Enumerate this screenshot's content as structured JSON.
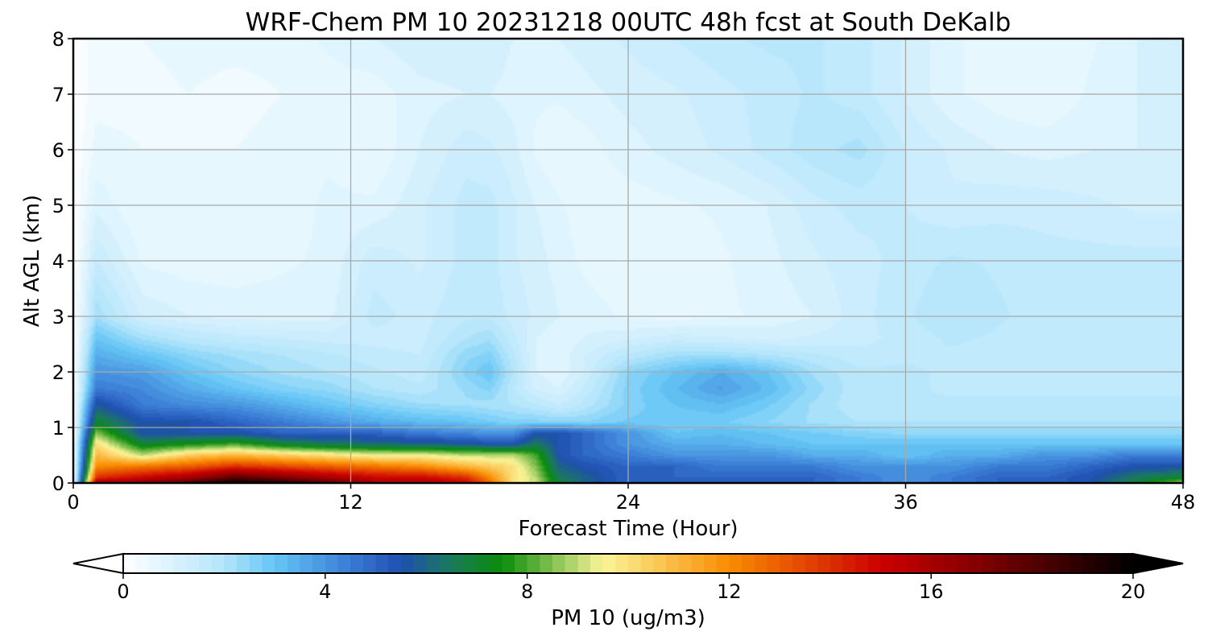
{
  "chart_data": {
    "type": "heatmap",
    "subtype": "time-height contour",
    "title": "WRF-Chem PM 10  20231218 00UTC 48h fcst at South DeKalb",
    "xlabel": "Forecast Time (Hour)",
    "ylabel": "Alt AGL (km)",
    "xlim": [
      0,
      48
    ],
    "ylim": [
      0,
      8
    ],
    "xticks": [
      "0",
      "12",
      "24",
      "36",
      "48"
    ],
    "yticks": [
      "0",
      "1",
      "2",
      "3",
      "4",
      "5",
      "6",
      "7",
      "8"
    ],
    "grid": true,
    "colorbar": {
      "label": "PM 10  (ug/m3)",
      "ticks": [
        "0",
        "4",
        "8",
        "12",
        "16",
        "20"
      ],
      "range": [
        0,
        20
      ],
      "extend": "both",
      "stops": [
        {
          "v": 0,
          "c": "#ffffff"
        },
        {
          "v": 2,
          "c": "#b3e5fc"
        },
        {
          "v": 3,
          "c": "#64c5f5"
        },
        {
          "v": 4.5,
          "c": "#3a7bd5"
        },
        {
          "v": 5.5,
          "c": "#1f4fb0"
        },
        {
          "v": 6.5,
          "c": "#1a7a5a"
        },
        {
          "v": 7.5,
          "c": "#0a8c0a"
        },
        {
          "v": 9.5,
          "c": "#fbf599"
        },
        {
          "v": 12,
          "c": "#fa8c00"
        },
        {
          "v": 15,
          "c": "#cc0000"
        },
        {
          "v": 17,
          "c": "#800000"
        },
        {
          "v": 20,
          "c": "#000000"
        }
      ]
    },
    "times_h": [
      0,
      1,
      3,
      5,
      7,
      9,
      11,
      13,
      15,
      17,
      18,
      19,
      20,
      21,
      22,
      24,
      26,
      28,
      30,
      32,
      34,
      36,
      38,
      40,
      42,
      44,
      46,
      48
    ],
    "altitudes_km": [
      0,
      0.1,
      0.3,
      0.5,
      0.7,
      0.9,
      1.1,
      1.4,
      1.7,
      2,
      2.3,
      2.6,
      3,
      4,
      5,
      6,
      7,
      8
    ],
    "values_ugm3": [
      [
        0,
        16,
        17,
        18.5,
        20,
        19.5,
        18,
        16,
        16,
        15,
        13,
        10,
        9,
        7,
        6,
        5,
        5,
        5,
        5,
        5,
        4.5,
        4,
        4.5,
        5,
        5,
        5.5,
        7,
        9
      ],
      [
        0,
        14,
        15,
        16,
        18,
        17,
        16,
        15,
        15,
        14,
        12,
        10,
        9,
        6.5,
        6,
        5,
        5,
        5,
        5,
        5,
        4.5,
        4,
        4.5,
        5,
        5,
        5.5,
        6.5,
        7
      ],
      [
        0,
        12,
        12.5,
        13,
        14,
        13.5,
        13,
        12.5,
        12,
        11,
        10.5,
        10,
        8.5,
        6,
        5.5,
        5,
        5,
        4.5,
        4.5,
        4.5,
        4,
        4,
        4,
        4.5,
        4.5,
        5,
        5.5,
        5.5
      ],
      [
        0,
        11,
        9,
        10.5,
        11,
        10.5,
        10,
        9.5,
        9.5,
        9,
        9,
        9,
        8,
        5.5,
        5,
        4.5,
        4,
        4,
        4,
        3.5,
        3.5,
        3,
        3.5,
        3.5,
        4,
        4,
        4.5,
        4.5
      ],
      [
        0,
        10,
        7,
        7.5,
        8,
        7,
        6.5,
        6.2,
        6,
        5.8,
        5.5,
        5.5,
        6.5,
        5.5,
        5,
        4,
        3.5,
        3.5,
        3.2,
        3,
        3,
        3,
        3,
        3,
        3,
        3,
        3,
        3
      ],
      [
        0,
        8.5,
        5.5,
        5.5,
        5.5,
        5,
        5,
        5,
        4.5,
        4.2,
        4,
        4,
        5.5,
        5.5,
        5,
        4,
        3,
        3.2,
        3,
        2.8,
        2.6,
        2.4,
        2.4,
        2.4,
        2.4,
        2.4,
        2.4,
        2.4
      ],
      [
        0,
        7,
        5.5,
        5.5,
        5,
        4.5,
        4,
        3.5,
        3.2,
        3,
        2.8,
        2.6,
        2.6,
        2.5,
        2.5,
        2.8,
        2.8,
        2.8,
        2.5,
        2.2,
        2,
        2,
        2,
        2,
        2,
        2,
        2,
        2
      ],
      [
        0,
        5.8,
        4.5,
        4.2,
        4,
        3.5,
        3,
        2.6,
        2.3,
        2.2,
        2.1,
        2,
        1.8,
        1.5,
        1.8,
        2.6,
        3,
        3.2,
        2.8,
        2.2,
        1.8,
        1.8,
        1.8,
        1.8,
        1.8,
        1.8,
        1.8,
        1.8
      ],
      [
        0,
        4.5,
        4.2,
        3.5,
        3,
        2.6,
        2.4,
        2,
        1.8,
        2.3,
        2.6,
        1.8,
        1.2,
        1,
        1.5,
        2.6,
        3.2,
        3.8,
        3.2,
        2.4,
        1.8,
        1.8,
        1.7,
        1.7,
        1.7,
        1.7,
        1.7,
        1.7
      ],
      [
        0,
        4,
        3.8,
        3,
        2.5,
        2.2,
        2,
        1.8,
        1.6,
        2.6,
        3,
        2,
        1,
        0.8,
        1.2,
        2.5,
        3,
        3.5,
        3,
        2.2,
        1.8,
        1.8,
        1.7,
        1.6,
        1.6,
        1.6,
        1.6,
        1.6
      ],
      [
        0,
        3.5,
        3,
        2.5,
        2.2,
        2,
        1.8,
        1.6,
        1.5,
        2.4,
        2.6,
        1.8,
        1,
        0.8,
        1.2,
        1.8,
        2.2,
        2.2,
        2,
        1.8,
        1.6,
        1.7,
        1.7,
        1.6,
        1.6,
        1.6,
        1.6,
        1.6
      ],
      [
        0,
        3,
        2.2,
        1.8,
        1.6,
        1.5,
        1.4,
        1.4,
        1.4,
        2,
        2.2,
        1.6,
        1,
        0.8,
        1,
        1.2,
        1.4,
        1.3,
        1.2,
        1.3,
        1.4,
        1.6,
        1.8,
        1.7,
        1.6,
        1.6,
        1.6,
        1.6
      ],
      [
        0,
        2.2,
        1.2,
        1,
        0.9,
        0.9,
        0.9,
        1.6,
        1.4,
        1.7,
        1.7,
        1.4,
        1.2,
        1,
        0.9,
        0.7,
        0.6,
        0.7,
        0.8,
        1,
        1.4,
        1.7,
        2,
        1.8,
        1.6,
        1.6,
        1.6,
        1.6
      ],
      [
        0,
        1.5,
        0.7,
        0.6,
        0.6,
        0.7,
        0.8,
        1.4,
        1.2,
        1.6,
        1.6,
        1.3,
        1.1,
        0.9,
        0.7,
        0.5,
        0.5,
        0.7,
        0.9,
        1.2,
        1.4,
        1.6,
        1.8,
        1.7,
        1.6,
        1.6,
        1.6,
        1.6
      ],
      [
        0,
        0.9,
        0.5,
        0.5,
        0.5,
        0.6,
        0.8,
        0.8,
        1.2,
        1.6,
        1.6,
        1.3,
        1,
        0.8,
        0.6,
        0.6,
        0.7,
        0.8,
        1,
        1.4,
        1.6,
        1.5,
        1.3,
        1.4,
        1.4,
        1.3,
        1.2,
        1.2
      ],
      [
        0,
        0.6,
        0.5,
        0.5,
        0.5,
        0.6,
        0.7,
        0.5,
        1,
        1.4,
        1.3,
        1.1,
        0.7,
        0.5,
        0.6,
        0.9,
        1.1,
        1.3,
        1.6,
        1.9,
        2.1,
        1.5,
        1.2,
        1,
        0.9,
        1,
        1,
        1.2
      ],
      [
        0,
        0.4,
        0.4,
        0.5,
        0.4,
        0.5,
        0.6,
        0.6,
        0.9,
        1,
        1,
        0.9,
        0.8,
        0.8,
        0.9,
        1.1,
        1.2,
        1.4,
        1.6,
        1.8,
        1.6,
        1.2,
        0.8,
        0.6,
        0.5,
        0.8,
        1,
        1.2
      ],
      [
        0,
        0.4,
        0.5,
        0.6,
        0.6,
        0.6,
        0.8,
        1,
        1.2,
        1.2,
        1.2,
        1,
        0.9,
        1,
        1.1,
        1.3,
        1.5,
        1.7,
        1.8,
        1.8,
        1.6,
        1.2,
        0.8,
        0.6,
        0.5,
        0.7,
        1,
        1.2
      ]
    ]
  }
}
